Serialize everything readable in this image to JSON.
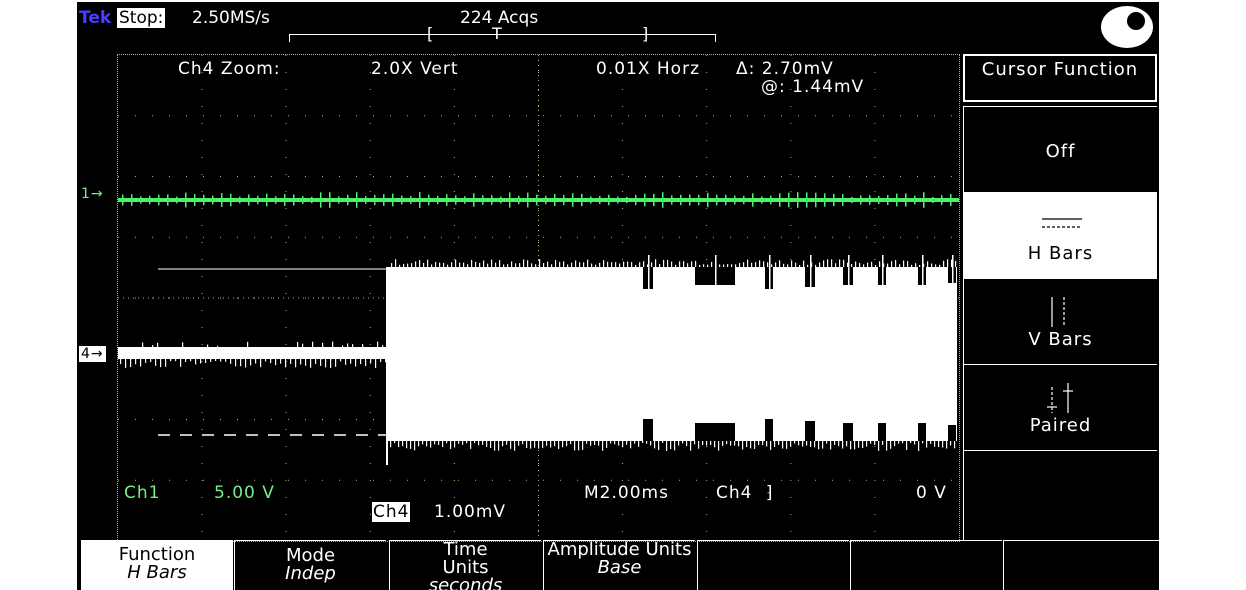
{
  "header": {
    "brand": "Tek",
    "status": "Stop:",
    "sample_rate": "2.50MS/s",
    "acquisitions": "224 Acqs",
    "trigger_marker": "T"
  },
  "readouts": {
    "zoom_channel": "Ch4 Zoom:",
    "zoom_vert": "2.0X Vert",
    "zoom_horz": "0.01X Horz",
    "cursor_delta": "Δ: 2.70mV",
    "cursor_at": "@: 1.44mV",
    "ch1_label": "Ch1",
    "ch1_scale": "5.00 V",
    "ch4_label": "Ch4",
    "ch4_scale": "1.00mV",
    "timebase": "M2.00ms",
    "trigger_source": "Ch4",
    "trigger_slope_icon": "rising-edge-icon",
    "trigger_level": "0 V"
  },
  "markers": {
    "ch1": "1→",
    "ch4": "4→"
  },
  "side_menu": {
    "title": "Cursor Function",
    "items": [
      {
        "label": "Off",
        "icon": ""
      },
      {
        "label": "H Bars",
        "icon": "h-bars-icon",
        "active": true
      },
      {
        "label": "V Bars",
        "icon": "v-bars-icon"
      },
      {
        "label": "Paired",
        "icon": "paired-cursors-icon"
      }
    ]
  },
  "bottom_menu": [
    {
      "label": "Function",
      "value": "H Bars",
      "active": true
    },
    {
      "label": "Mode",
      "value": "Indep"
    },
    {
      "label": "Time Units",
      "value": "seconds"
    },
    {
      "label": "Amplitude Units",
      "value": "Base"
    },
    {
      "label": "",
      "value": ""
    },
    {
      "label": "",
      "value": ""
    },
    {
      "label": "",
      "value": ""
    }
  ],
  "colors": {
    "ch1_trace": "#4cf06a",
    "ch4_trace": "#ffffff",
    "brand": "#4b3cff",
    "background": "#000000"
  }
}
